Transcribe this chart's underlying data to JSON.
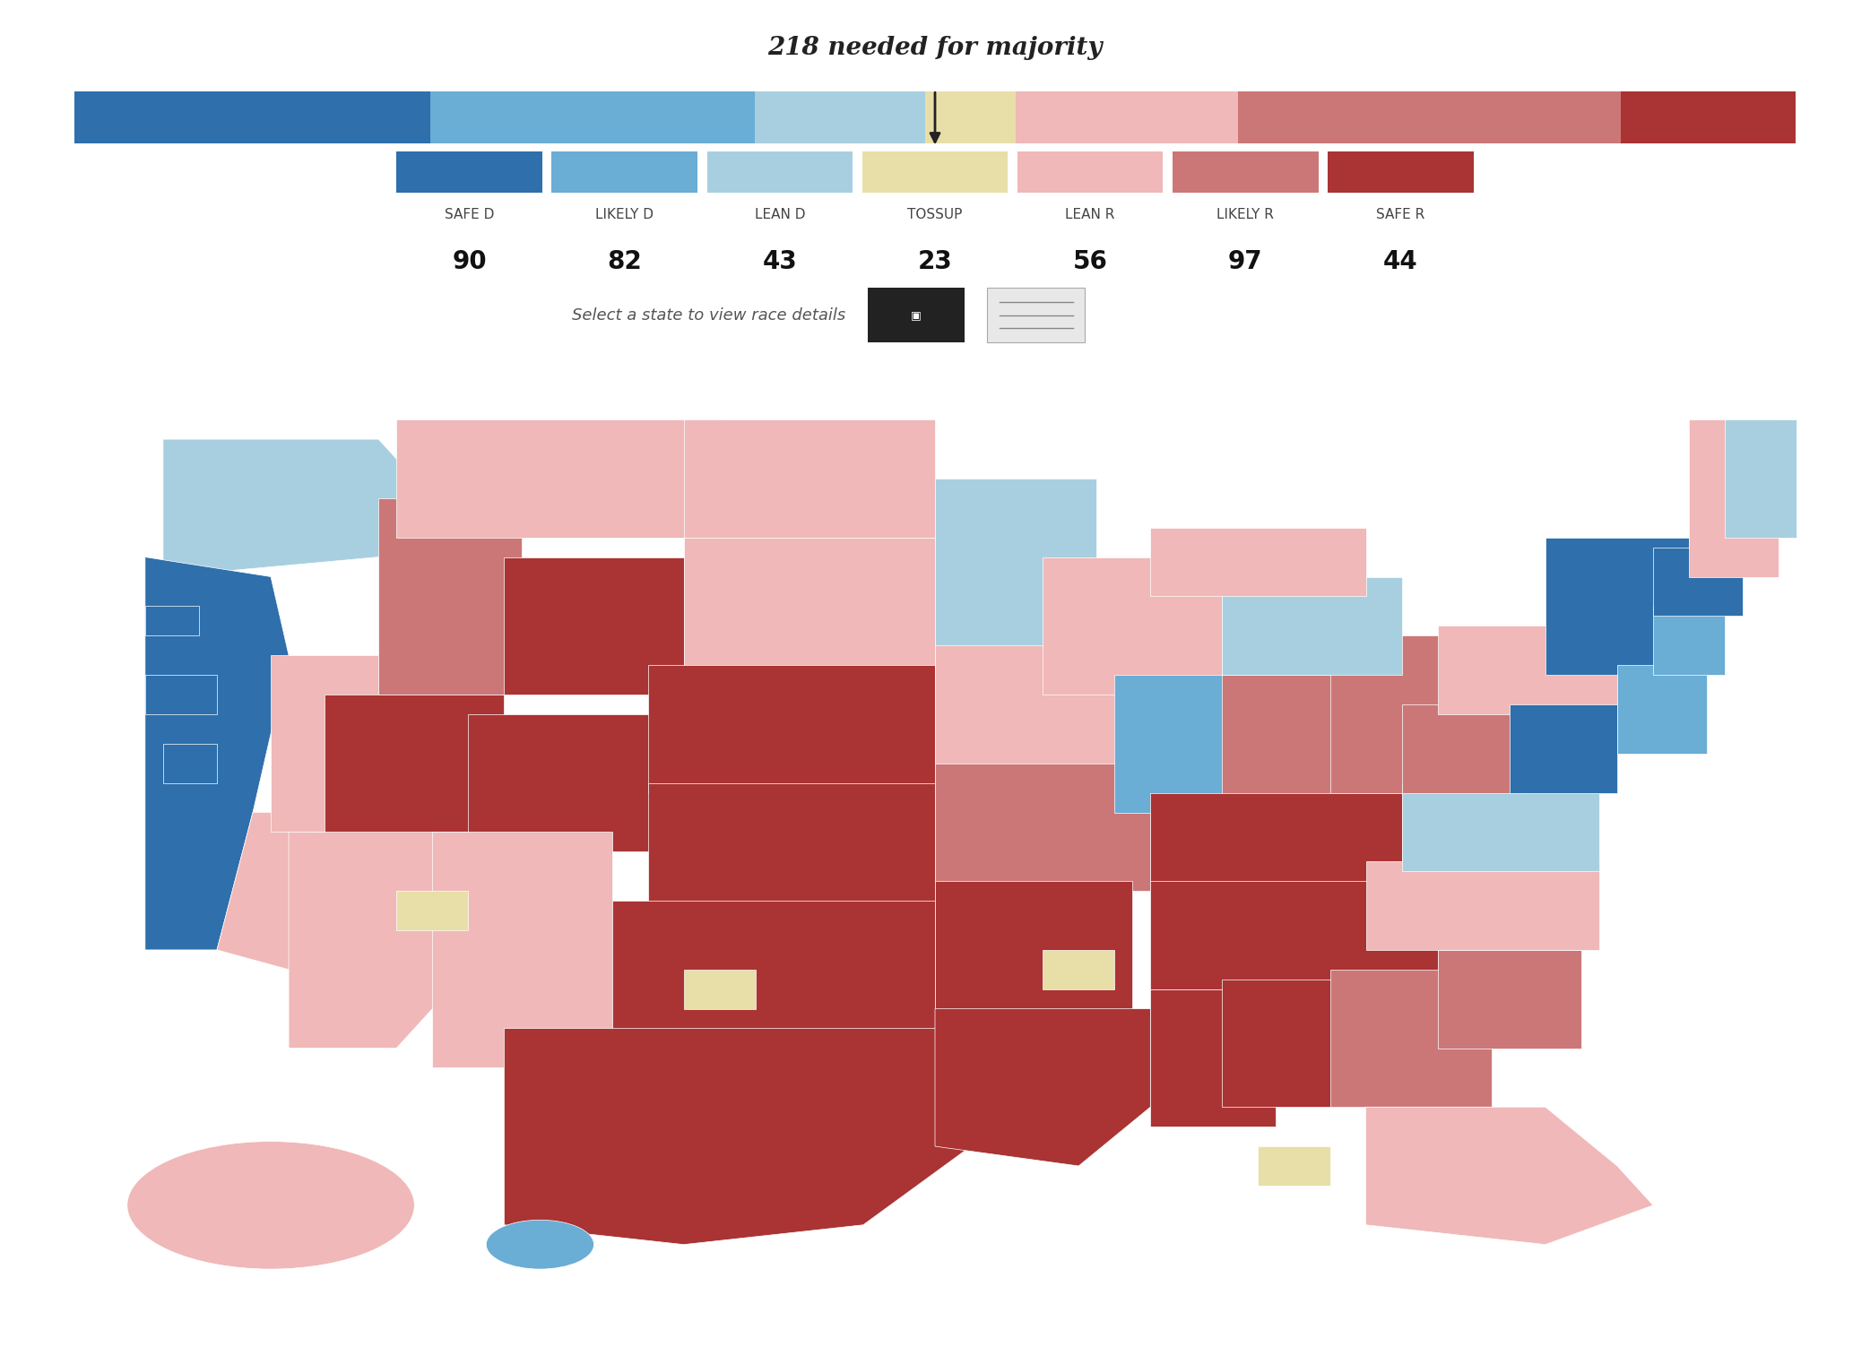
{
  "title": "218 needed for majority",
  "subtitle": "Select a state to view race details",
  "categories": [
    "SAFE D",
    "LIKELY D",
    "LEAN D",
    "TOSSUP",
    "LEAN R",
    "LIKELY R",
    "SAFE R"
  ],
  "values": [
    90,
    82,
    43,
    23,
    56,
    97,
    44
  ],
  "colors": [
    "#2e6fac",
    "#6aadd5",
    "#a8cfe0",
    "#e8dfa8",
    "#f0b8b8",
    "#cc7777",
    "#aa3333"
  ],
  "background_color": "#ffffff",
  "title_fontsize": 20,
  "label_fontsize": 11,
  "value_fontsize": 20
}
